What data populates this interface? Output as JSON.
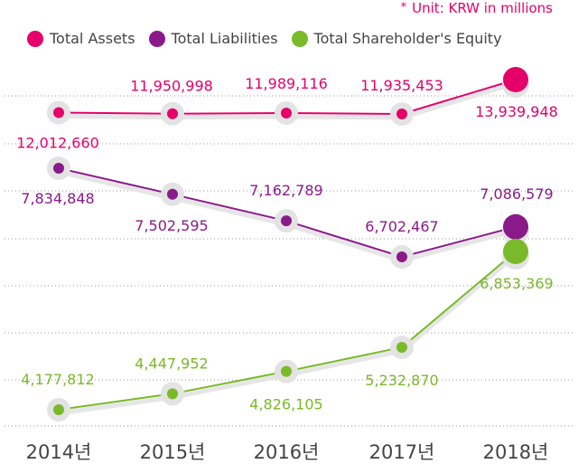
{
  "unit_note": "Unit: KRW in millions",
  "colors": {
    "assets": "#e5006a",
    "liabilities": "#8a1a8a",
    "equity": "#7ab929",
    "grid": "#999999",
    "halo": "#e3e3e3",
    "axis_text": "#444444"
  },
  "chart_data": {
    "type": "line",
    "categories": [
      "2014년",
      "2015년",
      "2016년",
      "2017년",
      "2018년"
    ],
    "series": [
      {
        "name": "Total Assets",
        "key": "assets",
        "values": [
          12012660,
          11950998,
          11989116,
          11935453,
          13939948
        ],
        "labels": [
          "12,012,660",
          "11,950,998",
          "11,989,116",
          "11,935,453",
          "13,939,948"
        ]
      },
      {
        "name": "Total Liabilities",
        "key": "liabilities",
        "values": [
          7834848,
          7502595,
          7162789,
          6702467,
          7086579
        ],
        "labels": [
          "7,834,848",
          "7,502,595",
          "7,162,789",
          "6,702,467",
          "7,086,579"
        ]
      },
      {
        "name": "Total Shareholder's Equity",
        "key": "equity",
        "values": [
          4177812,
          4447952,
          4826105,
          5232870,
          6853369
        ],
        "labels": [
          "4,177,812",
          "4,447,952",
          "4,826,105",
          "5,232,870",
          "6,853,369"
        ]
      }
    ],
    "grid": "horizontal dotted",
    "legend": "top-left",
    "note": "Series are drawn as separate bands; vertical positions are not on a shared y-axis."
  }
}
